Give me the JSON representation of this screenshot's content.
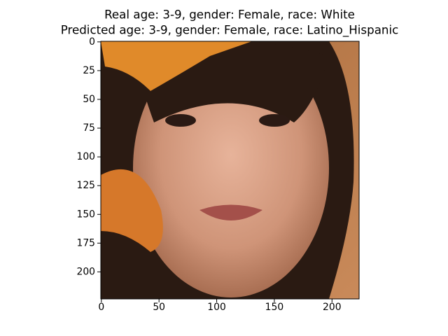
{
  "chart_data": {
    "type": "image",
    "title": [
      "Real age: 3-9, gender: Female, race: White",
      "Predicted age: 3-9, gender: Female, race: Latino_Hispanic"
    ],
    "xlim": [
      -0.5,
      223.5
    ],
    "xticks": [
      0,
      50,
      100,
      150,
      200
    ],
    "ylim": [
      223.5,
      -0.5
    ],
    "yticks": [
      0,
      25,
      50,
      75,
      100,
      125,
      150,
      175,
      200
    ]
  }
}
